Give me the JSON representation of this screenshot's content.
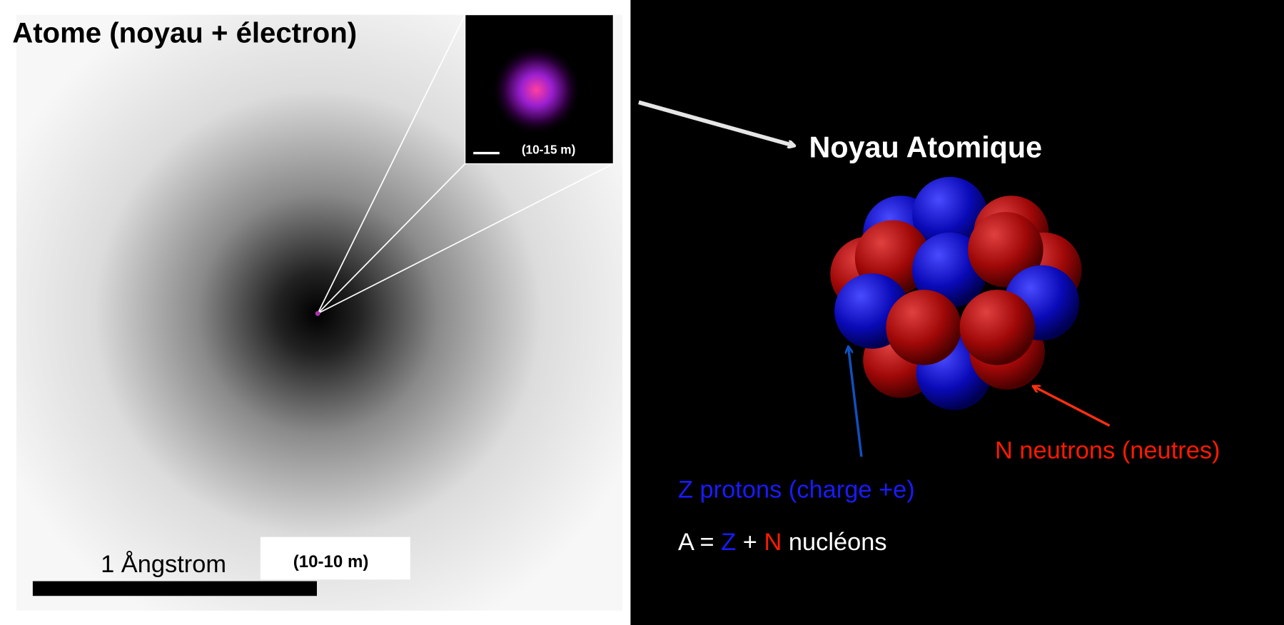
{
  "atom": {
    "title": "Atome (noyau + électron)",
    "inset_scale": "(10-15 m)",
    "scale_bar_label": "1 Ångstrom",
    "scale_bar_unit": "(10-10 m)"
  },
  "nucleus": {
    "title": "Noyau Atomique",
    "protons_label": "Z protons (charge +e)",
    "neutrons_label": "N neutrons (neutres)",
    "formula": {
      "lhs": "A = ",
      "z": "Z",
      "plus": " + ",
      "n": "N",
      "rhs": " nucléons"
    }
  }
}
